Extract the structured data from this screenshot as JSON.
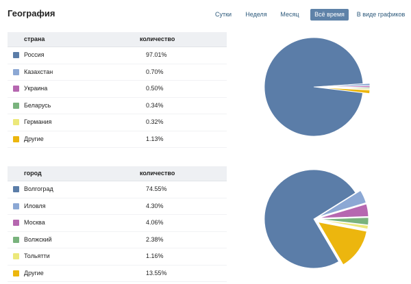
{
  "title": "География",
  "tabs": {
    "day": "Сутки",
    "week": "Неделя",
    "month": "Месяц",
    "all_time": "Всё время",
    "as_charts": "В виде графиков",
    "active": "all_time"
  },
  "colors": [
    "#5b7da8",
    "#8ca8d4",
    "#b667b0",
    "#79b37d",
    "#ece87a",
    "#ecb60e"
  ],
  "country_table": {
    "col_name": "страна",
    "col_value": "количество",
    "rows": [
      {
        "name": "Россия",
        "value": "97.01%"
      },
      {
        "name": "Казахстан",
        "value": "0.70%"
      },
      {
        "name": "Украина",
        "value": "0.50%"
      },
      {
        "name": "Беларусь",
        "value": "0.34%"
      },
      {
        "name": "Германия",
        "value": "0.32%"
      },
      {
        "name": "Другие",
        "value": "1.13%"
      }
    ]
  },
  "city_table": {
    "col_name": "город",
    "col_value": "количество",
    "rows": [
      {
        "name": "Волгоград",
        "value": "74.55%"
      },
      {
        "name": "Иловля",
        "value": "4.30%"
      },
      {
        "name": "Москва",
        "value": "4.06%"
      },
      {
        "name": "Волжский",
        "value": "2.38%"
      },
      {
        "name": "Тольятти",
        "value": "1.16%"
      },
      {
        "name": "Другие",
        "value": "13.55%"
      }
    ]
  },
  "chart_data": [
    {
      "type": "pie",
      "categories": [
        "Россия",
        "Казахстан",
        "Украина",
        "Беларусь",
        "Германия",
        "Другие"
      ],
      "values": [
        97.01,
        0.7,
        0.5,
        0.34,
        0.32,
        1.13
      ]
    },
    {
      "type": "pie",
      "categories": [
        "Волгоград",
        "Иловля",
        "Москва",
        "Волжский",
        "Тольятти",
        "Другие"
      ],
      "values": [
        74.55,
        4.3,
        4.06,
        2.38,
        1.16,
        13.55
      ]
    }
  ]
}
